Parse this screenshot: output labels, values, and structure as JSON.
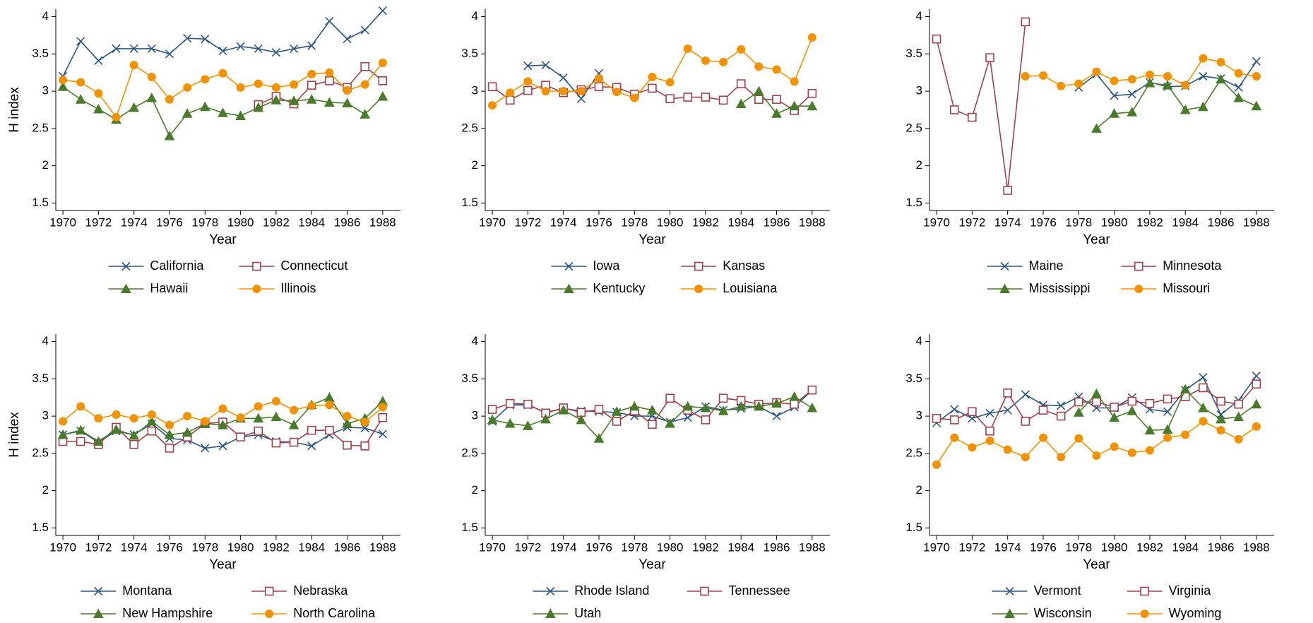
{
  "chart_data": [
    {
      "type": "line",
      "ylabel": "H index",
      "xlabel": "Year",
      "x": [
        1970,
        1971,
        1972,
        1973,
        1974,
        1975,
        1976,
        1977,
        1978,
        1979,
        1980,
        1981,
        1982,
        1983,
        1984,
        1985,
        1986,
        1987,
        1988
      ],
      "xlim": [
        1969.6,
        1989
      ],
      "xticks": [
        1970,
        1972,
        1974,
        1976,
        1978,
        1980,
        1982,
        1984,
        1986,
        1988
      ],
      "ylim": [
        1.4,
        4.1
      ],
      "yticks": [
        1.5,
        2,
        2.5,
        3,
        3.5,
        4
      ],
      "series": [
        {
          "name": "California",
          "color": "#2a5783",
          "marker": "x",
          "values": [
            3.2,
            3.67,
            3.41,
            3.57,
            3.57,
            3.57,
            3.5,
            3.71,
            3.7,
            3.54,
            3.6,
            3.57,
            3.52,
            3.57,
            3.61,
            3.94,
            3.7,
            3.82,
            4.08
          ]
        },
        {
          "name": "Connecticut",
          "color": "#a0414a",
          "marker": "square",
          "values": [
            null,
            null,
            null,
            null,
            null,
            null,
            null,
            null,
            null,
            null,
            null,
            2.82,
            2.93,
            2.83,
            3.08,
            3.14,
            3.05,
            3.33,
            3.14
          ]
        },
        {
          "name": "Hawaii",
          "color": "#4a7a2b",
          "marker": "triangle",
          "values": [
            3.06,
            2.89,
            2.76,
            2.62,
            2.78,
            2.91,
            2.4,
            2.7,
            2.79,
            2.71,
            2.67,
            2.78,
            2.88,
            2.87,
            2.89,
            2.85,
            2.84,
            2.69,
            2.93
          ]
        },
        {
          "name": "Illinois",
          "color": "#f39200",
          "marker": "circle",
          "values": [
            3.15,
            3.12,
            2.97,
            2.65,
            3.35,
            3.19,
            2.89,
            3.05,
            3.16,
            3.24,
            3.05,
            3.1,
            3.05,
            3.09,
            3.23,
            3.25,
            3.01,
            3.09,
            3.38
          ]
        }
      ]
    },
    {
      "type": "line",
      "xlabel": "Year",
      "x": [
        1970,
        1971,
        1972,
        1973,
        1974,
        1975,
        1976,
        1977,
        1978,
        1979,
        1980,
        1981,
        1982,
        1983,
        1984,
        1985,
        1986,
        1987,
        1988
      ],
      "xlim": [
        1969.6,
        1989
      ],
      "xticks": [
        1970,
        1972,
        1974,
        1976,
        1978,
        1980,
        1982,
        1984,
        1986,
        1988
      ],
      "ylim": [
        1.4,
        4.1
      ],
      "yticks": [
        1.5,
        2,
        2.5,
        3,
        3.5,
        4
      ],
      "series": [
        {
          "name": "Iowa",
          "color": "#2a5783",
          "marker": "x",
          "values": [
            null,
            null,
            3.34,
            3.35,
            3.18,
            2.9,
            3.24,
            null,
            null,
            null,
            null,
            null,
            null,
            null,
            null,
            null,
            null,
            null,
            null
          ]
        },
        {
          "name": "Kansas",
          "color": "#a0414a",
          "marker": "square",
          "values": [
            3.06,
            2.88,
            3.01,
            3.08,
            2.98,
            3.02,
            3.06,
            3.05,
            2.96,
            3.04,
            2.9,
            2.92,
            2.92,
            2.88,
            3.1,
            2.89,
            2.89,
            2.74,
            2.97
          ]
        },
        {
          "name": "Kentucky",
          "color": "#4a7a2b",
          "marker": "triangle",
          "values": [
            null,
            null,
            null,
            null,
            null,
            null,
            null,
            null,
            null,
            null,
            null,
            null,
            null,
            null,
            2.83,
            3.0,
            2.7,
            2.8,
            2.8
          ]
        },
        {
          "name": "Louisiana",
          "color": "#f39200",
          "marker": "circle",
          "values": [
            2.81,
            2.98,
            3.13,
            3.0,
            3.0,
            3.0,
            3.17,
            2.99,
            2.91,
            3.19,
            3.12,
            3.57,
            3.41,
            3.39,
            3.56,
            3.33,
            3.29,
            3.13,
            3.72
          ]
        }
      ]
    },
    {
      "type": "line",
      "xlabel": "Year",
      "x": [
        1970,
        1971,
        1972,
        1973,
        1974,
        1975,
        1976,
        1977,
        1978,
        1979,
        1980,
        1981,
        1982,
        1983,
        1984,
        1985,
        1986,
        1987,
        1988
      ],
      "xlim": [
        1969.6,
        1989
      ],
      "xticks": [
        1970,
        1972,
        1974,
        1976,
        1978,
        1980,
        1982,
        1984,
        1986,
        1988
      ],
      "ylim": [
        1.4,
        4.1
      ],
      "yticks": [
        1.5,
        2,
        2.5,
        3,
        3.5,
        4
      ],
      "series": [
        {
          "name": "Maine",
          "color": "#2a5783",
          "marker": "x",
          "values": [
            null,
            null,
            null,
            null,
            null,
            null,
            null,
            null,
            3.05,
            3.23,
            2.94,
            2.96,
            3.12,
            3.06,
            3.07,
            3.2,
            3.17,
            3.05,
            3.4
          ]
        },
        {
          "name": "Minnesota",
          "color": "#a0414a",
          "marker": "square",
          "values": [
            3.7,
            2.75,
            2.65,
            3.45,
            1.67,
            3.93,
            null,
            null,
            null,
            null,
            null,
            null,
            null,
            null,
            null,
            null,
            null,
            null,
            null
          ]
        },
        {
          "name": "Mississippi",
          "color": "#4a7a2b",
          "marker": "triangle",
          "values": [
            null,
            null,
            null,
            null,
            null,
            null,
            null,
            null,
            null,
            2.5,
            2.7,
            2.72,
            3.11,
            3.08,
            2.75,
            2.79,
            3.16,
            2.91,
            2.8
          ]
        },
        {
          "name": "Missouri",
          "color": "#f39200",
          "marker": "circle",
          "values": [
            null,
            null,
            null,
            null,
            null,
            3.2,
            3.21,
            3.07,
            3.1,
            3.26,
            3.14,
            3.16,
            3.22,
            3.2,
            3.08,
            3.44,
            3.39,
            3.24,
            3.2
          ]
        }
      ]
    },
    {
      "type": "line",
      "ylabel": "H index",
      "xlabel": "Year",
      "x": [
        1970,
        1971,
        1972,
        1973,
        1974,
        1975,
        1976,
        1977,
        1978,
        1979,
        1980,
        1981,
        1982,
        1983,
        1984,
        1985,
        1986,
        1987,
        1988
      ],
      "xlim": [
        1969.6,
        1989
      ],
      "xticks": [
        1970,
        1972,
        1974,
        1976,
        1978,
        1980,
        1982,
        1984,
        1986,
        1988
      ],
      "ylim": [
        1.4,
        4.1
      ],
      "yticks": [
        1.5,
        2,
        2.5,
        3,
        3.5,
        4
      ],
      "series": [
        {
          "name": "Montana",
          "color": "#2a5783",
          "marker": "x",
          "values": [
            2.75,
            2.8,
            2.65,
            2.8,
            2.75,
            2.9,
            2.7,
            2.68,
            2.57,
            2.6,
            2.72,
            2.75,
            2.66,
            2.65,
            2.6,
            2.75,
            2.85,
            2.84,
            2.76
          ]
        },
        {
          "name": "Nebraska",
          "color": "#a0414a",
          "marker": "square",
          "values": [
            2.66,
            2.66,
            2.62,
            2.85,
            2.62,
            2.8,
            2.57,
            2.72,
            2.9,
            2.92,
            2.72,
            2.8,
            2.64,
            2.65,
            2.81,
            2.81,
            2.61,
            2.6,
            2.98
          ]
        },
        {
          "name": "New Hampshire",
          "color": "#4a7a2b",
          "marker": "triangle",
          "values": [
            2.75,
            2.81,
            2.66,
            2.82,
            2.74,
            2.93,
            2.75,
            2.78,
            2.9,
            2.88,
            2.97,
            2.97,
            2.99,
            2.88,
            3.15,
            3.25,
            2.9,
            2.97,
            3.2
          ]
        },
        {
          "name": "North Carolina",
          "color": "#f39200",
          "marker": "circle",
          "values": [
            2.93,
            3.13,
            2.97,
            3.02,
            2.97,
            3.02,
            2.88,
            3.0,
            2.93,
            3.1,
            2.98,
            3.13,
            3.2,
            3.08,
            3.14,
            3.15,
            3.0,
            2.92,
            3.12
          ]
        }
      ]
    },
    {
      "type": "line",
      "xlabel": "Year",
      "x": [
        1970,
        1971,
        1972,
        1973,
        1974,
        1975,
        1976,
        1977,
        1978,
        1979,
        1980,
        1981,
        1982,
        1983,
        1984,
        1985,
        1986,
        1987,
        1988
      ],
      "xlim": [
        1969.6,
        1989
      ],
      "xticks": [
        1970,
        1972,
        1974,
        1976,
        1978,
        1980,
        1982,
        1984,
        1986,
        1988
      ],
      "ylim": [
        1.4,
        4.1
      ],
      "yticks": [
        1.5,
        2,
        2.5,
        3,
        3.5,
        4
      ],
      "series": [
        {
          "name": "Rhode Island",
          "color": "#2a5783",
          "marker": "x",
          "values": [
            2.93,
            3.15,
            3.15,
            3.05,
            3.1,
            3.07,
            3.06,
            3.05,
            3.0,
            3.0,
            2.92,
            2.98,
            3.13,
            3.08,
            3.1,
            3.13,
            3.0,
            3.12,
            3.35
          ]
        },
        {
          "name": "Tennessee",
          "color": "#a0414a",
          "marker": "square",
          "values": [
            3.09,
            3.17,
            3.16,
            3.04,
            3.11,
            3.05,
            3.09,
            2.93,
            3.07,
            2.89,
            3.24,
            3.08,
            2.95,
            3.24,
            3.21,
            3.16,
            3.18,
            3.16,
            3.35
          ]
        },
        {
          "name": "Utah",
          "color": "#4a7a2b",
          "marker": "triangle",
          "values": [
            2.95,
            2.9,
            2.87,
            2.96,
            3.08,
            2.95,
            2.7,
            3.06,
            3.13,
            3.08,
            2.9,
            3.13,
            3.11,
            3.07,
            3.13,
            3.13,
            3.17,
            3.26,
            3.11
          ]
        }
      ]
    },
    {
      "type": "line",
      "xlabel": "Year",
      "x": [
        1970,
        1971,
        1972,
        1973,
        1974,
        1975,
        1976,
        1977,
        1978,
        1979,
        1980,
        1981,
        1982,
        1983,
        1984,
        1985,
        1986,
        1987,
        1988
      ],
      "xlim": [
        1969.6,
        1989
      ],
      "xticks": [
        1970,
        1972,
        1974,
        1976,
        1978,
        1980,
        1982,
        1984,
        1986,
        1988
      ],
      "ylim": [
        1.4,
        4.1
      ],
      "yticks": [
        1.5,
        2,
        2.5,
        3,
        3.5,
        4
      ],
      "series": [
        {
          "name": "Vermont",
          "color": "#2a5783",
          "marker": "x",
          "values": [
            2.91,
            3.09,
            2.97,
            3.04,
            3.08,
            3.29,
            3.15,
            3.14,
            3.26,
            3.11,
            3.11,
            3.25,
            3.09,
            3.06,
            3.35,
            3.52,
            3.02,
            3.21,
            3.54
          ]
        },
        {
          "name": "Virginia",
          "color": "#a0414a",
          "marker": "square",
          "values": [
            2.97,
            2.95,
            3.06,
            2.8,
            3.31,
            2.93,
            3.08,
            3.0,
            3.19,
            3.19,
            3.12,
            3.2,
            3.17,
            3.23,
            3.26,
            3.38,
            3.2,
            3.16,
            3.43
          ]
        },
        {
          "name": "Wisconsin",
          "color": "#4a7a2b",
          "marker": "triangle",
          "values": [
            null,
            null,
            null,
            null,
            null,
            null,
            null,
            null,
            3.05,
            3.3,
            2.98,
            3.07,
            2.81,
            2.82,
            3.36,
            3.11,
            2.96,
            2.99,
            3.16
          ]
        },
        {
          "name": "Wyoming",
          "color": "#f39200",
          "marker": "circle",
          "values": [
            2.35,
            2.71,
            2.58,
            2.67,
            2.55,
            2.45,
            2.71,
            2.45,
            2.7,
            2.47,
            2.59,
            2.51,
            2.54,
            2.71,
            2.75,
            2.93,
            2.81,
            2.69,
            2.86
          ]
        }
      ]
    }
  ]
}
